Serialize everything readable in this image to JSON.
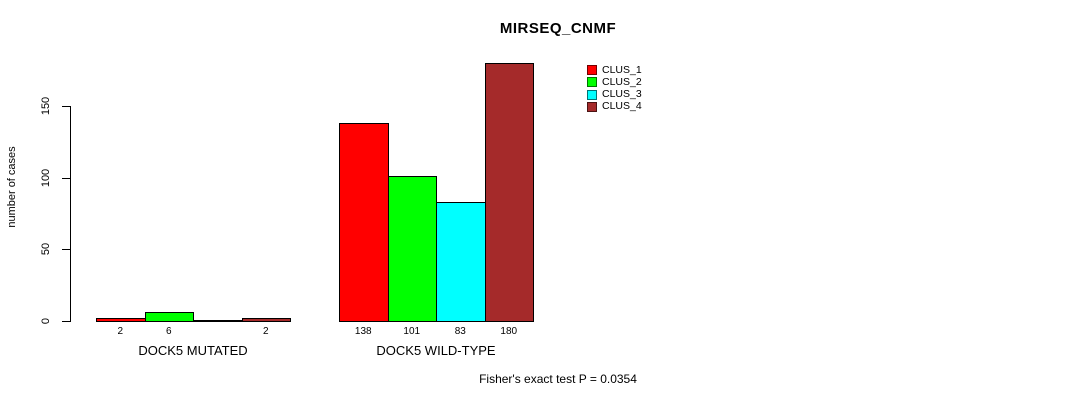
{
  "chart_data": {
    "type": "bar",
    "title": "MIRSEQ_CNMF",
    "ylabel": "number of cases",
    "xlabel": "",
    "annotation": "Fisher's exact test P = 0.0354",
    "ylim": [
      0,
      180
    ],
    "yticks": [
      0,
      50,
      100,
      150
    ],
    "grid": false,
    "legend_position": "inside-top-right",
    "categories": [
      "DOCK5 MUTATED",
      "DOCK5 WILD-TYPE"
    ],
    "series": [
      {
        "name": "CLUS_1",
        "color": "#ff0000",
        "values": [
          2,
          138
        ]
      },
      {
        "name": "CLUS_2",
        "color": "#00ff00",
        "values": [
          6,
          101
        ]
      },
      {
        "name": "CLUS_3",
        "color": "#00ffff",
        "values": [
          0,
          83
        ]
      },
      {
        "name": "CLUS_4",
        "color": "#a52a2a",
        "values": [
          2,
          180
        ]
      }
    ],
    "bar_labels_shown": [
      "2",
      "6",
      "2",
      "138",
      "101",
      "83",
      "180"
    ],
    "colors": {
      "axis": "#000000",
      "background": "#ffffff",
      "bar_border": "#000000",
      "text": "#000000"
    }
  }
}
